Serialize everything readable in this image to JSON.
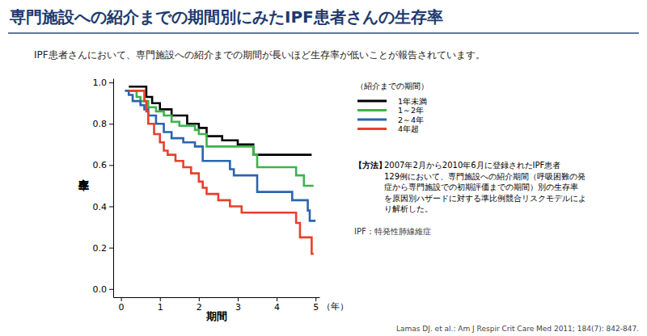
{
  "chart_data": {
    "type": "line",
    "title": "専門施設への紹介までの期間別にみたIPF患者さんの生存率",
    "subtitle": "IPF患者さんにおいて、専門施設への紹介までの期間が長いほど生存率が低いことが報告されています。",
    "xlabel": "期間",
    "x_unit_label": "（年）",
    "ylabel": "生存率",
    "legend_title": "（紹介までの期間）",
    "method": {
      "label": "【方法】",
      "lines": [
        "2007年2月から2010年6月に登録されたIPF患者",
        "129例において、専門施設への紹介期間（呼吸困難の発",
        "症から専門施設での初期評価までの期間）別の生存率",
        "を原因別ハザードに対する準比例競合リスクモデルによ",
        "り解析した。"
      ]
    },
    "note": "IPF：特発性肺線維症",
    "source": "Lamas DJ. et al.: Am J Respir Crit Care Med 2011; 184(7): 842-847.",
    "xlim": [
      -0.2,
      5.1
    ],
    "ylim": [
      -0.04,
      1.02
    ],
    "xticks": [
      0,
      1,
      2,
      3,
      4,
      5
    ],
    "yticks": [
      {
        "value": 0,
        "label": "0.0"
      },
      0.2,
      0.4,
      0.6,
      0.8,
      {
        "value": 1,
        "label": "1.0"
      }
    ],
    "legend": "upper right",
    "line_style": "step",
    "series": [
      {
        "name": "1年未満",
        "color": "#000000",
        "x": [
          0.2,
          0.65,
          0.8,
          1.0,
          1.3,
          1.7,
          2.0,
          2.2,
          2.6,
          3.0,
          3.4,
          4.9
        ],
        "values": [
          0.98,
          0.93,
          0.9,
          0.87,
          0.84,
          0.8,
          0.78,
          0.74,
          0.72,
          0.7,
          0.65,
          0.65
        ]
      },
      {
        "name": "1～2年",
        "color": "#3cb44a",
        "x": [
          0.2,
          0.4,
          0.5,
          0.7,
          0.9,
          1.1,
          1.3,
          1.5,
          1.9,
          2.0,
          2.2,
          3.4,
          3.5,
          4.5,
          4.7,
          4.95
        ],
        "values": [
          0.96,
          0.93,
          0.91,
          0.88,
          0.86,
          0.84,
          0.81,
          0.79,
          0.77,
          0.75,
          0.69,
          0.65,
          0.59,
          0.55,
          0.5,
          0.5
        ]
      },
      {
        "name": "2～4年",
        "color": "#2a64ad",
        "x": [
          0.1,
          0.2,
          0.3,
          0.5,
          0.6,
          0.7,
          0.9,
          1.1,
          1.3,
          1.6,
          1.9,
          2.1,
          2.8,
          2.9,
          3.5,
          4.4,
          4.8,
          4.85,
          5.0
        ],
        "values": [
          0.96,
          0.94,
          0.91,
          0.89,
          0.87,
          0.84,
          0.8,
          0.76,
          0.73,
          0.71,
          0.69,
          0.62,
          0.58,
          0.55,
          0.47,
          0.43,
          0.38,
          0.33,
          0.33
        ]
      },
      {
        "name": "4年超",
        "color": "#e8402a",
        "x": [
          0.2,
          0.6,
          0.65,
          0.7,
          0.85,
          1.0,
          1.1,
          1.2,
          1.4,
          1.6,
          1.8,
          2.0,
          2.1,
          2.2,
          2.5,
          2.8,
          3.1,
          4.5,
          4.6,
          4.9,
          4.95
        ],
        "values": [
          0.96,
          0.91,
          0.86,
          0.8,
          0.75,
          0.71,
          0.67,
          0.65,
          0.62,
          0.59,
          0.56,
          0.52,
          0.49,
          0.46,
          0.43,
          0.4,
          0.37,
          0.32,
          0.25,
          0.17,
          0.17
        ]
      }
    ]
  }
}
